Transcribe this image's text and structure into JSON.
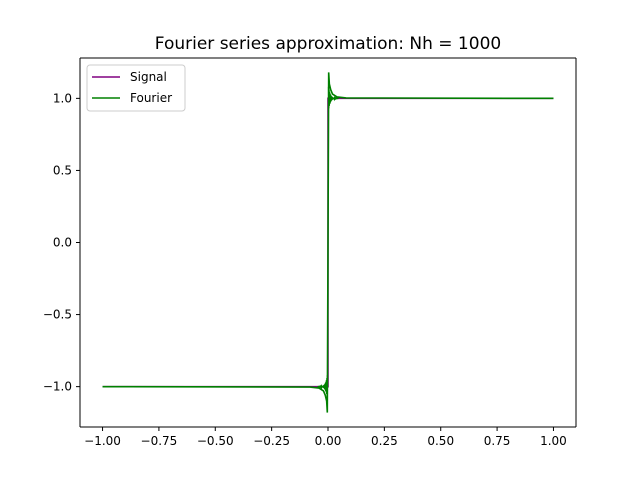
{
  "chart_data": {
    "type": "line",
    "title": "Fourier series approximation: Nh = 1000",
    "xlabel": "",
    "ylabel": "",
    "xlim": [
      -1.1,
      1.1
    ],
    "ylim": [
      -1.28,
      1.28
    ],
    "x_ticks": [
      {
        "value": -1.0,
        "label": "−1.00"
      },
      {
        "value": -0.75,
        "label": "−0.75"
      },
      {
        "value": -0.5,
        "label": "−0.50"
      },
      {
        "value": -0.25,
        "label": "−0.25"
      },
      {
        "value": 0.0,
        "label": "0.00"
      },
      {
        "value": 0.25,
        "label": "0.25"
      },
      {
        "value": 0.5,
        "label": "0.50"
      },
      {
        "value": 0.75,
        "label": "0.75"
      },
      {
        "value": 1.0,
        "label": "1.00"
      }
    ],
    "y_ticks": [
      {
        "value": 1.0,
        "label": "1.0"
      },
      {
        "value": 0.5,
        "label": "0.5"
      },
      {
        "value": 0.0,
        "label": "0.0"
      },
      {
        "value": -0.5,
        "label": "−0.5"
      },
      {
        "value": -1.0,
        "label": "−1.0"
      }
    ],
    "grid": false,
    "legend_position": "top-left",
    "series": [
      {
        "name": "Signal",
        "color": "#800080",
        "x": [
          -1.0,
          0.0,
          0.0,
          1.0
        ],
        "y": [
          -1.0,
          -1.0,
          1.0,
          1.0
        ]
      },
      {
        "name": "Fourier",
        "color": "#008000",
        "x": [
          -1.0,
          -0.08,
          -0.04,
          -0.02,
          -0.012,
          -0.006,
          -0.003,
          0.0,
          0.003,
          0.006,
          0.012,
          0.02,
          0.04,
          0.08,
          1.0
        ],
        "y": [
          -1.0,
          -1.003,
          -1.01,
          -1.03,
          -1.06,
          -1.1,
          -1.18,
          0.0,
          1.18,
          1.1,
          1.06,
          1.03,
          1.01,
          1.003,
          1.0
        ]
      }
    ]
  }
}
